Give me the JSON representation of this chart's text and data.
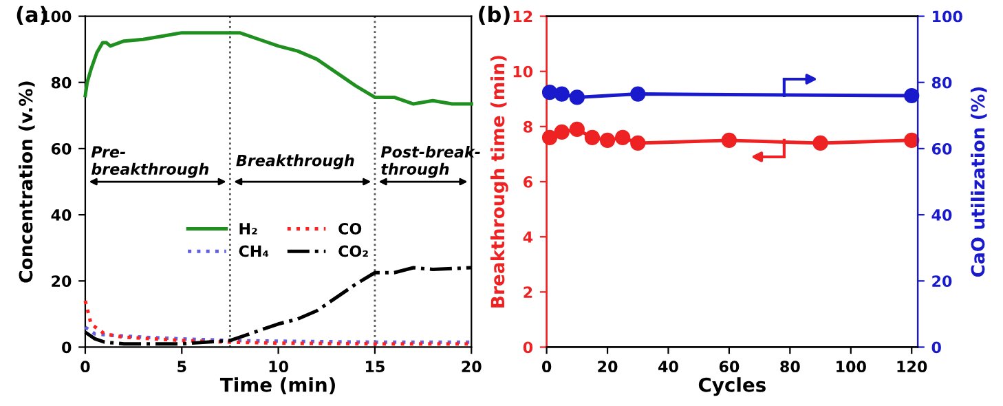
{
  "chart_data": [
    {
      "type": "line",
      "title": "(a)",
      "xlabel": "Time (min)",
      "ylabel": "Concentration (v.%)",
      "xlim": [
        0,
        20
      ],
      "xticks": [
        0,
        5,
        10,
        15,
        20
      ],
      "ylim": [
        0,
        100
      ],
      "yticks": [
        0,
        20,
        40,
        60,
        80,
        100
      ],
      "grid": false,
      "legend": "center",
      "marker": "none",
      "series": [
        {
          "name": "H₂",
          "color": "#1f8f1f",
          "line_style": "solid",
          "x": [
            0,
            0.1,
            0.3,
            0.6,
            0.9,
            1.1,
            1.3,
            2,
            3,
            4,
            5,
            6,
            7,
            7.5,
            8,
            9,
            10,
            11,
            12,
            13,
            14,
            15,
            16,
            17,
            18,
            19,
            20
          ],
          "values": [
            76,
            80,
            84,
            89,
            92,
            92,
            91,
            92.5,
            93,
            94,
            95,
            95,
            95,
            95,
            95,
            93,
            91,
            89.5,
            87,
            83,
            79,
            75.5,
            75.5,
            73.5,
            74.5,
            73.5,
            73.5
          ]
        },
        {
          "name": "CH₄",
          "color": "#6060e0",
          "line_style": "dotted",
          "x": [
            0,
            0.5,
            1.5,
            3,
            5,
            7.5,
            10,
            15,
            20
          ],
          "values": [
            6,
            4,
            3.5,
            3,
            2.5,
            2,
            1.8,
            1.5,
            1.5
          ]
        },
        {
          "name": "CO",
          "color": "#ff2020",
          "line_style": "dotted",
          "x": [
            0,
            0.3,
            1,
            2,
            5,
            7.5,
            10,
            15,
            20
          ],
          "values": [
            14,
            7,
            4,
            3,
            2,
            1.5,
            1.2,
            1,
            1
          ]
        },
        {
          "name": "CO₂",
          "color": "#000000",
          "line_style": "dashdot",
          "x": [
            0,
            0.5,
            1,
            2,
            5,
            7.5,
            8.5,
            10,
            11,
            12,
            13,
            14,
            15,
            16,
            17,
            18,
            20
          ],
          "values": [
            4.5,
            2.5,
            1.5,
            1,
            1,
            2,
            4,
            7,
            8.5,
            11,
            15,
            19,
            22.5,
            22.5,
            24,
            23.5,
            24
          ]
        }
      ],
      "ref_lines": [
        {
          "axis": "x",
          "value": 7.5,
          "label": null,
          "color": "#555555",
          "line_style": "dotted"
        },
        {
          "axis": "x",
          "value": 15,
          "label": null,
          "color": "#555555",
          "line_style": "dotted"
        }
      ],
      "annotations": [
        "Pre-\nbreakthrough",
        "Breakthrough",
        "Post-break-\nthrough"
      ]
    },
    {
      "type": "line",
      "title": "(b)",
      "xlabel": "Cycles",
      "ylabel": "Breakthrough time (min)",
      "y2label": "CaO utilization (%)",
      "xlim": [
        0,
        122
      ],
      "xticks": [
        0,
        20,
        40,
        60,
        80,
        100,
        120
      ],
      "ylim": [
        0,
        12
      ],
      "yticks": [
        0,
        2,
        4,
        6,
        8,
        10,
        12
      ],
      "y2lim": [
        0,
        100
      ],
      "y2ticks": [
        0,
        20,
        40,
        60,
        80,
        100
      ],
      "grid": false,
      "legend": false,
      "marker": "circle",
      "series": [
        {
          "color": "#ee2222",
          "axis": "y",
          "x": [
            1,
            5,
            10,
            15,
            20,
            25,
            30,
            60,
            90,
            120
          ],
          "values": [
            7.6,
            7.8,
            7.9,
            7.6,
            7.5,
            7.6,
            7.4,
            7.5,
            7.4,
            7.5
          ]
        },
        {
          "color": "#1a1acd",
          "axis": "y2",
          "x": [
            1,
            5,
            10,
            30,
            120
          ],
          "values": [
            77,
            76.5,
            75.5,
            76.5,
            76
          ]
        }
      ]
    }
  ]
}
